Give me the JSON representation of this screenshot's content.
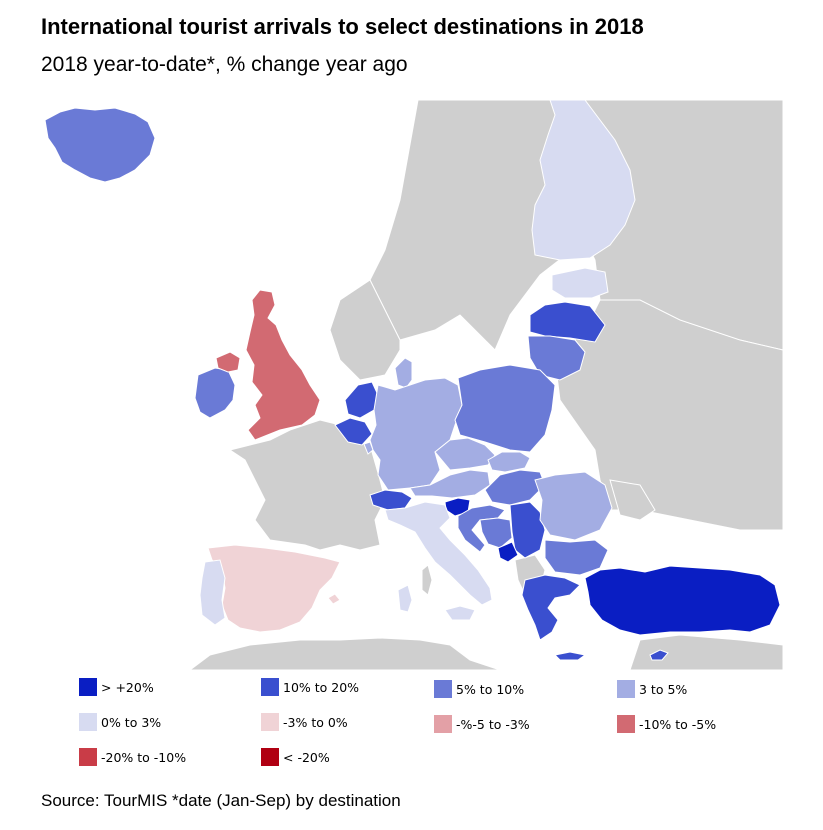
{
  "title": "International tourist arrivals to select destinations in 2018",
  "subtitle": "2018 year-to-date*, % change year ago",
  "source": "Source: TourMIS  *date (Jan-Sep) by destination",
  "colors": {
    "background": "#ffffff",
    "sea": "#ffffff",
    "no_data": "#cfcfcf",
    "border": "#ffffff"
  },
  "legend": [
    {
      "label": "> +20%",
      "color": "#0a1ec3"
    },
    {
      "label": "10% to 20%",
      "color": "#3a4fcf"
    },
    {
      "label": "5% to 10%",
      "color": "#6a7ad6"
    },
    {
      "label": "3 to 5%",
      "color": "#a3ade3"
    },
    {
      "label": "0% to 3%",
      "color": "#d7dbf1"
    },
    {
      "label": "-3% to 0%",
      "color": "#f0d3d6"
    },
    {
      "label": "-%-5 to -3%",
      "color": "#e3a0a6"
    },
    {
      "label": "-10% to -5%",
      "color": "#d26a72"
    },
    {
      "label": "-20% to -10%",
      "color": "#c93c47"
    },
    {
      "label": "< -20%",
      "color": "#b00012"
    }
  ],
  "regions": [
    {
      "name": "Iceland",
      "category": "5% to 10%"
    },
    {
      "name": "Ireland",
      "category": "5% to 10%"
    },
    {
      "name": "Northern Ireland",
      "category": "-10% to -5%"
    },
    {
      "name": "United Kingdom",
      "category": "-10% to -5%"
    },
    {
      "name": "Finland",
      "category": "0% to 3%"
    },
    {
      "name": "Estonia",
      "category": "0% to 3%"
    },
    {
      "name": "Latvia",
      "category": "10% to 20%"
    },
    {
      "name": "Lithuania",
      "category": "5% to 10%"
    },
    {
      "name": "Netherlands",
      "category": "10% to 20%"
    },
    {
      "name": "Belgium",
      "category": "10% to 20%"
    },
    {
      "name": "Luxembourg",
      "category": "3 to 5%"
    },
    {
      "name": "Germany",
      "category": "3 to 5%"
    },
    {
      "name": "Denmark",
      "category": "3 to 5%"
    },
    {
      "name": "Poland",
      "category": "5% to 10%"
    },
    {
      "name": "Czechia",
      "category": "3 to 5%"
    },
    {
      "name": "Slovakia",
      "category": "3 to 5%"
    },
    {
      "name": "Austria",
      "category": "3 to 5%"
    },
    {
      "name": "Switzerland",
      "category": "10% to 20%"
    },
    {
      "name": "Hungary",
      "category": "5% to 10%"
    },
    {
      "name": "Slovenia",
      "category": "> +20%"
    },
    {
      "name": "Croatia",
      "category": "5% to 10%"
    },
    {
      "name": "Bosnia and Herzegovina",
      "category": "5% to 10%"
    },
    {
      "name": "Serbia",
      "category": "10% to 20%"
    },
    {
      "name": "Montenegro",
      "category": "> +20%"
    },
    {
      "name": "Romania",
      "category": "3 to 5%"
    },
    {
      "name": "Bulgaria",
      "category": "5% to 10%"
    },
    {
      "name": "Greece",
      "category": "10% to 20%"
    },
    {
      "name": "Cyprus",
      "category": "10% to 20%"
    },
    {
      "name": "Turkey",
      "category": "> +20%"
    },
    {
      "name": "Italy",
      "category": "0% to 3%"
    },
    {
      "name": "Spain",
      "category": "-3% to 0%"
    },
    {
      "name": "Portugal",
      "category": "0% to 3%"
    }
  ]
}
